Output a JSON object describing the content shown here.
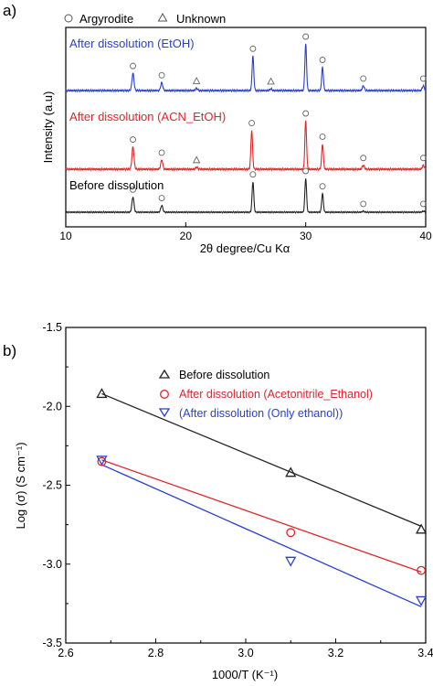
{
  "chart_data": [
    {
      "panel_label": "a)",
      "type": "line",
      "xlabel": "2θ degree/Cu Kα",
      "ylabel": "Intensity (a.u)",
      "xlim": [
        10,
        40
      ],
      "x_ticks": [
        "10",
        "20",
        "30",
        "40"
      ],
      "legend": [
        {
          "marker": "circle",
          "label": "Argyrodite"
        },
        {
          "marker": "triangle",
          "label": "Unknown"
        }
      ],
      "series": [
        {
          "name": "After dissolution (EtOH)",
          "color": "#2a3fd0",
          "peaks": [
            {
              "x": 15.6,
              "h": 0.37,
              "w": 0.12
            },
            {
              "x": 18.0,
              "h": 0.17,
              "w": 0.12
            },
            {
              "x": 20.9,
              "h": 0.05,
              "w": 0.12
            },
            {
              "x": 25.6,
              "h": 0.74,
              "w": 0.1
            },
            {
              "x": 27.1,
              "h": 0.04,
              "w": 0.12
            },
            {
              "x": 30.0,
              "h": 1.0,
              "w": 0.1
            },
            {
              "x": 31.4,
              "h": 0.5,
              "w": 0.1
            },
            {
              "x": 34.8,
              "h": 0.1,
              "w": 0.12
            },
            {
              "x": 39.8,
              "h": 0.1,
              "w": 0.12
            }
          ],
          "argyrodite_markers": [
            15.6,
            18.0,
            25.6,
            30.0,
            31.4,
            34.8,
            39.8
          ],
          "unknown_markers": [
            20.9,
            27.1
          ]
        },
        {
          "name": "After dissolution (ACN_EtOH)",
          "color": "#e0252a",
          "peaks": [
            {
              "x": 15.6,
              "h": 0.46,
              "w": 0.12
            },
            {
              "x": 18.0,
              "h": 0.19,
              "w": 0.12
            },
            {
              "x": 20.9,
              "h": 0.04,
              "w": 0.12
            },
            {
              "x": 25.5,
              "h": 0.8,
              "w": 0.1
            },
            {
              "x": 30.0,
              "h": 1.0,
              "w": 0.1
            },
            {
              "x": 31.4,
              "h": 0.52,
              "w": 0.1
            },
            {
              "x": 34.8,
              "h": 0.08,
              "w": 0.12
            },
            {
              "x": 39.8,
              "h": 0.08,
              "w": 0.12
            }
          ],
          "argyrodite_markers": [
            15.6,
            18.0,
            25.5,
            30.0,
            31.4,
            34.8,
            39.8
          ],
          "unknown_markers": [
            20.9
          ]
        },
        {
          "name": "Before dissolution",
          "color": "#222222",
          "peaks": [
            {
              "x": 15.6,
              "h": 0.45,
              "w": 0.12
            },
            {
              "x": 18.0,
              "h": 0.2,
              "w": 0.12
            },
            {
              "x": 25.6,
              "h": 0.9,
              "w": 0.1
            },
            {
              "x": 30.0,
              "h": 1.0,
              "w": 0.1
            },
            {
              "x": 31.4,
              "h": 0.55,
              "w": 0.1
            },
            {
              "x": 34.8,
              "h": 0.03,
              "w": 0.12
            },
            {
              "x": 39.8,
              "h": 0.03,
              "w": 0.12
            }
          ],
          "argyrodite_markers": [
            15.6,
            18.0,
            25.6,
            30.0,
            31.4,
            34.8,
            39.8
          ],
          "unknown_markers": []
        }
      ]
    },
    {
      "panel_label": "b)",
      "type": "scatter",
      "xlabel": "1000/T (K⁻¹)",
      "ylabel": "Log (σ) (S cm⁻¹)",
      "xlim": [
        2.6,
        3.4
      ],
      "ylim": [
        -3.5,
        -1.5
      ],
      "x_ticks": [
        "2.6",
        "2.8",
        "3.0",
        "3.2",
        "3.4"
      ],
      "y_ticks": [
        "-1.5",
        "-2.0",
        "-2.5",
        "-3.0",
        "-3.5"
      ],
      "legend_position": "top-right",
      "series": [
        {
          "name": "Before dissolution",
          "color": "#222222",
          "marker": "triangle-up",
          "x": [
            2.68,
            3.1,
            3.39
          ],
          "y": [
            -1.92,
            -2.42,
            -2.78
          ],
          "fit": [
            [
              2.68,
              -1.92
            ],
            [
              3.39,
              -2.76
            ]
          ]
        },
        {
          "name": "After dissolution (Acetonitrile_Ethanol)",
          "color": "#e0252a",
          "marker": "circle",
          "x": [
            2.68,
            3.1,
            3.39
          ],
          "y": [
            -2.35,
            -2.8,
            -3.04
          ],
          "fit": [
            [
              2.68,
              -2.34
            ],
            [
              3.39,
              -3.05
            ]
          ]
        },
        {
          "name": "(After dissolution (Only ethanol))",
          "color": "#2a3fd0",
          "marker": "triangle-down",
          "x": [
            2.68,
            3.1,
            3.39
          ],
          "y": [
            -2.34,
            -2.98,
            -3.23
          ],
          "fit": [
            [
              2.68,
              -2.37
            ],
            [
              3.39,
              -3.27
            ]
          ]
        }
      ]
    }
  ]
}
